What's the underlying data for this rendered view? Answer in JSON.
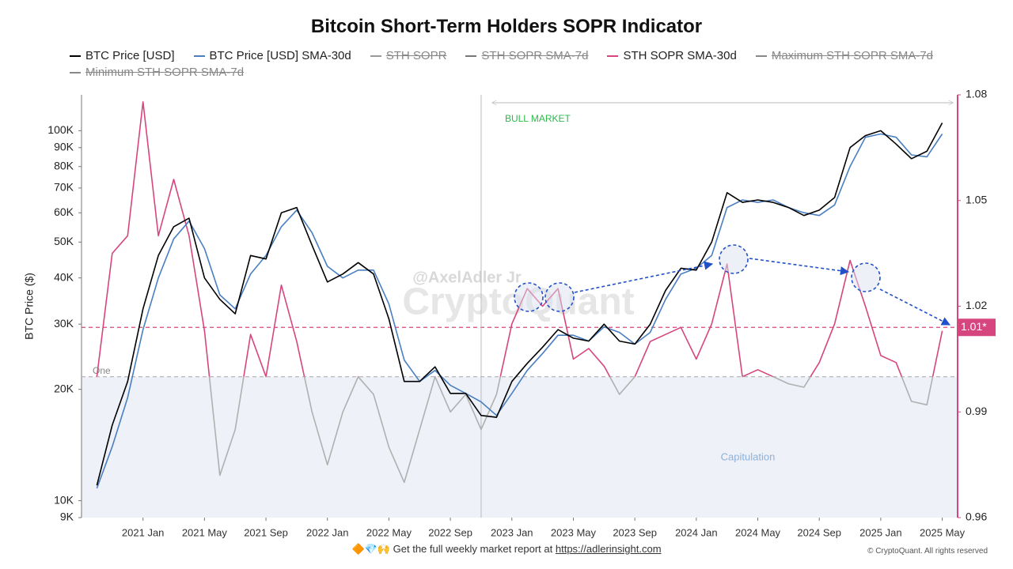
{
  "chart_data": {
    "type": "line",
    "title": "Bitcoin Short-Term Holders SOPR Indicator",
    "y_label": "BTC Price ($)",
    "yscale": "log",
    "x": [
      "2020-10",
      "2020-11",
      "2020-12",
      "2021-01",
      "2021-02",
      "2021-03",
      "2021-04",
      "2021-05",
      "2021-06",
      "2021-07",
      "2021-08",
      "2021-09",
      "2021-10",
      "2021-11",
      "2021-12",
      "2022-01",
      "2022-02",
      "2022-03",
      "2022-04",
      "2022-05",
      "2022-06",
      "2022-07",
      "2022-08",
      "2022-09",
      "2022-10",
      "2022-11",
      "2022-12",
      "2023-01",
      "2023-02",
      "2023-03",
      "2023-04",
      "2023-05",
      "2023-06",
      "2023-07",
      "2023-08",
      "2023-09",
      "2023-10",
      "2023-11",
      "2023-12",
      "2024-01",
      "2024-02",
      "2024-03",
      "2024-04",
      "2024-05",
      "2024-06",
      "2024-07",
      "2024-08",
      "2024-09",
      "2024-10",
      "2024-11",
      "2024-12",
      "2025-01",
      "2025-02",
      "2025-03",
      "2025-04",
      "2025-05"
    ],
    "xlim": [
      "2020-09",
      "2025-06"
    ],
    "xticks": [
      {
        "value": "2021-01",
        "label": "2021 Jan"
      },
      {
        "value": "2021-05",
        "label": "2021 May"
      },
      {
        "value": "2021-09",
        "label": "2021 Sep"
      },
      {
        "value": "2022-01",
        "label": "2022 Jan"
      },
      {
        "value": "2022-05",
        "label": "2022 May"
      },
      {
        "value": "2022-09",
        "label": "2022 Sep"
      },
      {
        "value": "2023-01",
        "label": "2023 Jan"
      },
      {
        "value": "2023-05",
        "label": "2023 May"
      },
      {
        "value": "2023-09",
        "label": "2023 Sep"
      },
      {
        "value": "2024-01",
        "label": "2024 Jan"
      },
      {
        "value": "2024-05",
        "label": "2024 May"
      },
      {
        "value": "2024-09",
        "label": "2024 Sep"
      },
      {
        "value": "2025-01",
        "label": "2025 Jan"
      },
      {
        "value": "2025-05",
        "label": "2025 May"
      }
    ],
    "ylim": [
      9000,
      125000
    ],
    "yticks": [
      {
        "value": 9000,
        "label": "9K"
      },
      {
        "value": 10000,
        "label": "10K"
      },
      {
        "value": 20000,
        "label": "20K"
      },
      {
        "value": 30000,
        "label": "30K"
      },
      {
        "value": 40000,
        "label": "40K"
      },
      {
        "value": 50000,
        "label": "50K"
      },
      {
        "value": 60000,
        "label": "60K"
      },
      {
        "value": 70000,
        "label": "70K"
      },
      {
        "value": 80000,
        "label": "80K"
      },
      {
        "value": 90000,
        "label": "90K"
      },
      {
        "value": 100000,
        "label": "100K"
      }
    ],
    "y2lim": [
      0.96,
      1.08
    ],
    "y2ticks": [
      0.96,
      0.99,
      1.02,
      1.05,
      1.08
    ],
    "series": [
      {
        "name": "BTC Price [USD]",
        "color": "#000000",
        "values": [
          11000,
          16000,
          21000,
          33000,
          46000,
          55000,
          58000,
          40000,
          35000,
          32000,
          46000,
          45000,
          60000,
          62000,
          49000,
          39000,
          41000,
          44000,
          41000,
          31000,
          21000,
          21000,
          23000,
          19500,
          19500,
          17000,
          16800,
          21000,
          23500,
          26000,
          29000,
          27500,
          27000,
          30000,
          27000,
          26500,
          30000,
          37000,
          42500,
          42000,
          50000,
          68000,
          64000,
          65000,
          64000,
          62000,
          59000,
          61000,
          66000,
          90000,
          97000,
          100000,
          92000,
          84000,
          88000,
          105000
        ]
      },
      {
        "name": "BTC Price [USD] SMA-30d",
        "color": "#4a7fc1",
        "values": [
          10800,
          14000,
          19000,
          29000,
          40000,
          51000,
          57000,
          48000,
          36000,
          33000,
          41000,
          46000,
          55000,
          61000,
          53000,
          43000,
          40000,
          42000,
          42000,
          34000,
          24000,
          21000,
          22500,
          20500,
          19500,
          18500,
          17000,
          19500,
          22500,
          25000,
          28000,
          28000,
          27000,
          29500,
          28500,
          26500,
          28500,
          35000,
          41000,
          42500,
          46000,
          62000,
          65000,
          64000,
          65000,
          62000,
          60000,
          59000,
          63000,
          80000,
          96000,
          98000,
          96000,
          86000,
          85000,
          98000
        ]
      },
      {
        "name": "STH SOPR",
        "color": "#999999",
        "hidden": true
      },
      {
        "name": "STH SOPR SMA-7d",
        "color": "#777777",
        "hidden": true
      },
      {
        "name": "STH SOPR SMA-30d",
        "color": "#d6457e",
        "axis": "y2",
        "below_color": "#b0b0b0",
        "values": [
          1.0,
          1.035,
          1.04,
          1.078,
          1.04,
          1.056,
          1.04,
          1.013,
          0.972,
          0.985,
          1.012,
          1.0,
          1.026,
          1.01,
          0.99,
          0.975,
          0.99,
          1.0,
          0.995,
          0.98,
          0.97,
          0.985,
          1.0,
          0.99,
          0.995,
          0.985,
          0.995,
          1.015,
          1.025,
          1.02,
          1.025,
          1.005,
          1.008,
          1.003,
          0.995,
          1.0,
          1.01,
          1.012,
          1.014,
          1.005,
          1.015,
          1.032,
          1.0,
          1.002,
          1.0,
          0.998,
          0.997,
          1.004,
          1.015,
          1.033,
          1.02,
          1.006,
          1.004,
          0.993,
          0.992,
          1.013
        ]
      },
      {
        "name": "Maximum STH SOPR SMA-7d",
        "color": "#888888",
        "hidden": true
      },
      {
        "name": "Minimum STH SOPR SMA-7d",
        "color": "#888888",
        "hidden": true
      }
    ],
    "reference_lines": [
      {
        "value": 1.0,
        "label": "One",
        "color": "#b0b0b0"
      },
      {
        "value": 1.014,
        "label": "1.01*",
        "color": "#d6457e"
      }
    ],
    "shade_color": "#eef1f8",
    "capitulation_label": "Capitulation",
    "vline_x": "2022-11",
    "bull_label": "BULL MARKET",
    "watermark_handle": "@AxelAdler Jr",
    "watermark_brand": "CryptoQuant",
    "footer": {
      "icons": "🔶💎🙌",
      "text": "Get the full weekly market report at",
      "link": "https://adlerinsight.com"
    },
    "copyright": "© CryptoQuant. All rights reserved"
  }
}
